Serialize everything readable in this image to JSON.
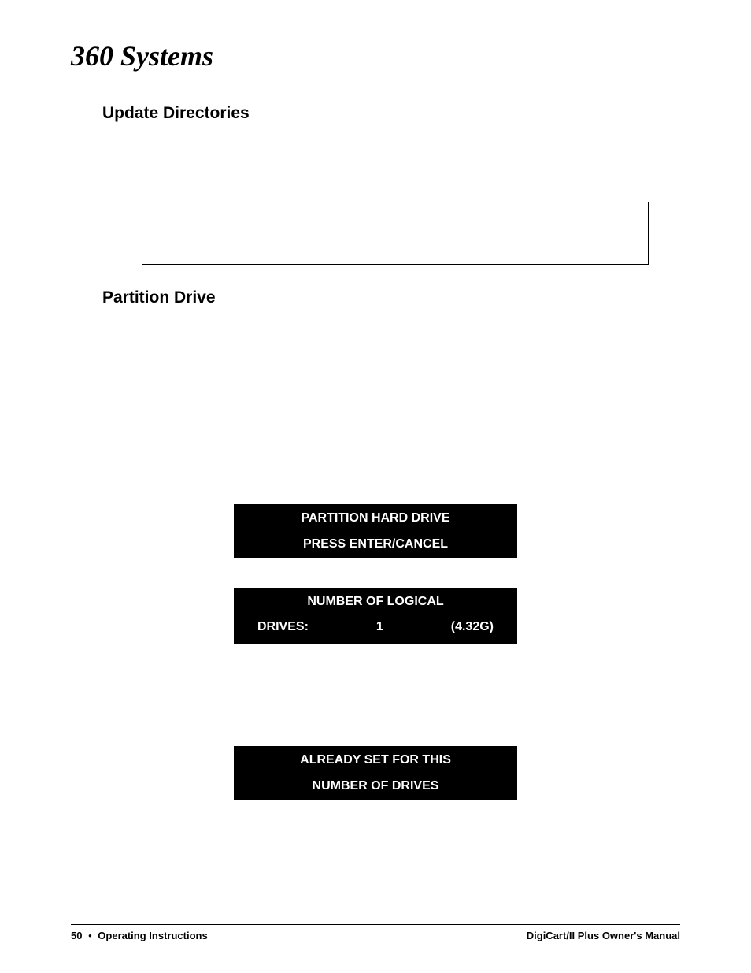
{
  "logo_text": "360 Systems",
  "headings": {
    "update_directories": "Update Directories",
    "partition_drive": "Partition Drive"
  },
  "displays": {
    "d1": {
      "line1": "PARTITION HARD DRIVE",
      "line2": "PRESS ENTER/CANCEL"
    },
    "d2": {
      "line1": "NUMBER OF LOGICAL",
      "row_label": "DRIVES:",
      "row_value": "1",
      "row_size": "(4.32G)"
    },
    "d3": {
      "line1": "ALREADY SET FOR THIS",
      "line2": "NUMBER OF DRIVES"
    }
  },
  "footer": {
    "page_number": "50",
    "bullet": "•",
    "section": "Operating Instructions",
    "manual_title": "DigiCart/II Plus Owner's Manual"
  },
  "colors": {
    "page_bg": "#ffffff",
    "text": "#000000",
    "display_bg": "#000000",
    "display_text": "#ffffff",
    "rule": "#000000"
  }
}
